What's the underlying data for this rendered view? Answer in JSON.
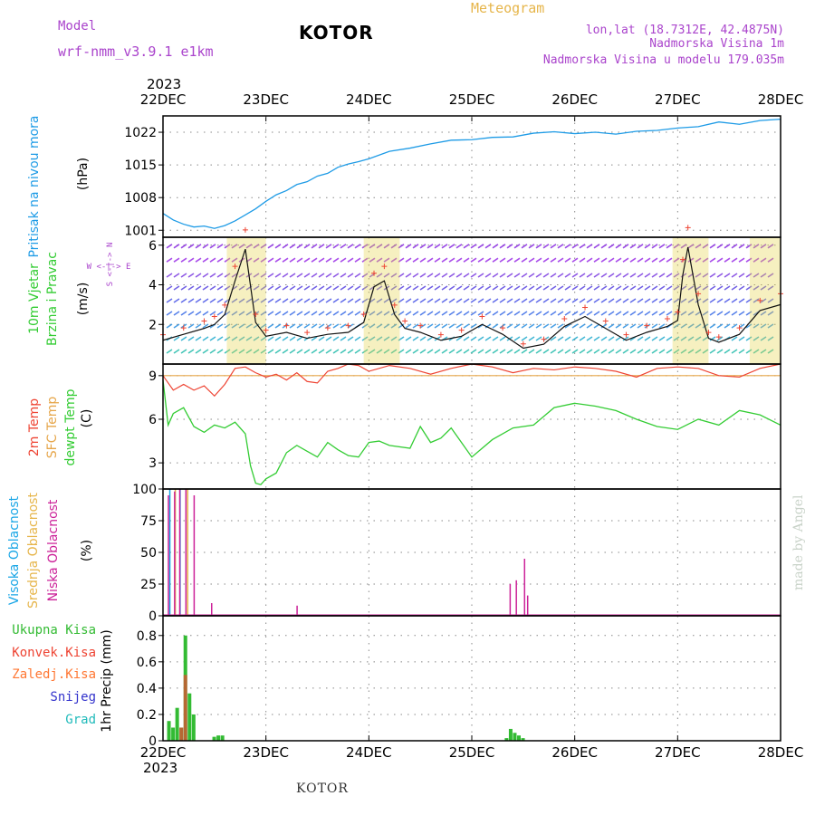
{
  "header": {
    "model_label": "Model",
    "model_name": "wrf-nmm_v3.9.1 e1km",
    "title": "KOTOR",
    "meteogram_label": "Meteogram",
    "lonlat": "lon,lat (18.7312E, 42.4875N)",
    "altitude": "Nadmorska Visina 1m",
    "model_altitude": "Nadmorska Visina u modelu 179.035m",
    "footer_title": "KOTOR",
    "credit": "made by Angel"
  },
  "colors": {
    "pressure": "#1e9be6",
    "temp2m": "#ee4433",
    "sfctemp": "#e6a64a",
    "dewpt": "#33cc33",
    "high_cloud": "#19a6e6",
    "mid_cloud": "#e6b54a",
    "low_cloud": "#cc2299",
    "total_precip": "#33bb33",
    "conv_precip": "#ee4433",
    "frz_precip": "#ff7733",
    "snow": "#3333cc",
    "hail": "#22bbbb",
    "purple_text": "#aa44cc"
  },
  "time_axis": {
    "year": "2023",
    "ticks": [
      "22DEC",
      "23DEC",
      "24DEC",
      "25DEC",
      "26DEC",
      "27DEC",
      "28DEC"
    ]
  },
  "chart_data": [
    {
      "type": "line",
      "panel": "pressure",
      "ylabel_lines": [
        "Pritisak na nivou mora"
      ],
      "unit": "(hPa)",
      "y_ticks": [
        "1022",
        "1015",
        "1008",
        "1001"
      ],
      "ylim": [
        999.5,
        1025.5
      ],
      "x_day_range": [
        0,
        6
      ],
      "series": [
        {
          "name": "Pritisak na nivou mora",
          "x": [
            0,
            0.1,
            0.2,
            0.3,
            0.4,
            0.5,
            0.6,
            0.7,
            0.8,
            0.9,
            1.0,
            1.1,
            1.2,
            1.3,
            1.4,
            1.5,
            1.6,
            1.7,
            1.8,
            1.9,
            2.0,
            2.2,
            2.4,
            2.6,
            2.8,
            3.0,
            3.2,
            3.4,
            3.6,
            3.8,
            4.0,
            4.2,
            4.4,
            4.6,
            4.8,
            5.0,
            5.2,
            5.4,
            5.6,
            5.8,
            6.0
          ],
          "values": [
            1004.6,
            1003.2,
            1002.3,
            1001.7,
            1001.9,
            1001.4,
            1002.0,
            1003.0,
            1004.3,
            1005.6,
            1007.2,
            1008.6,
            1009.5,
            1010.8,
            1011.4,
            1012.6,
            1013.2,
            1014.5,
            1015.2,
            1015.7,
            1016.3,
            1017.9,
            1018.6,
            1019.5,
            1020.3,
            1020.4,
            1020.9,
            1021.0,
            1021.8,
            1022.1,
            1021.7,
            1022.0,
            1021.6,
            1022.2,
            1022.4,
            1022.9,
            1023.2,
            1024.2,
            1023.7,
            1024.5,
            1024.8
          ]
        }
      ]
    },
    {
      "type": "line",
      "panel": "wind",
      "ylabel_lines": [
        "10m Vjetar",
        "Brzina i Pravac"
      ],
      "unit": "(m/s)",
      "compass": "W <-|-> E",
      "compass_vertical": "S <-|-> N",
      "y_ticks": [
        "6",
        "4",
        "2"
      ],
      "ylim": [
        0,
        6.4
      ],
      "x_day_range": [
        0,
        6
      ],
      "series": [
        {
          "name": "Brzina",
          "x": [
            0,
            0.2,
            0.4,
            0.5,
            0.6,
            0.7,
            0.8,
            0.9,
            1.0,
            1.2,
            1.4,
            1.6,
            1.8,
            1.95,
            2.05,
            2.15,
            2.25,
            2.35,
            2.5,
            2.7,
            2.9,
            3.1,
            3.3,
            3.5,
            3.7,
            3.9,
            4.1,
            4.3,
            4.5,
            4.7,
            4.9,
            5.0,
            5.05,
            5.1,
            5.2,
            5.3,
            5.4,
            5.6,
            5.8,
            6.0
          ],
          "values": [
            1.2,
            1.5,
            1.8,
            2.0,
            2.5,
            4.2,
            5.8,
            2.1,
            1.4,
            1.6,
            1.3,
            1.5,
            1.6,
            2.1,
            3.9,
            4.2,
            2.5,
            1.8,
            1.6,
            1.2,
            1.4,
            2.0,
            1.5,
            0.8,
            1.0,
            1.9,
            2.4,
            1.8,
            1.2,
            1.6,
            1.9,
            2.2,
            4.5,
            5.9,
            3.0,
            1.3,
            1.1,
            1.5,
            2.7,
            3.0
          ]
        }
      ]
    },
    {
      "type": "line",
      "panel": "temperature",
      "ylabel_lines": [
        "2m Temp",
        "SFC Temp",
        "dewpt Temp"
      ],
      "unit": "(C)",
      "y_ticks": [
        "9",
        "6",
        "3"
      ],
      "ylim": [
        1.2,
        9.8
      ],
      "x_day_range": [
        0,
        6
      ],
      "series": [
        {
          "name": "2m Temp",
          "x": [
            0,
            0.1,
            0.2,
            0.3,
            0.4,
            0.5,
            0.6,
            0.7,
            0.8,
            0.9,
            1.0,
            1.1,
            1.2,
            1.3,
            1.4,
            1.5,
            1.6,
            1.7,
            1.8,
            1.9,
            2.0,
            2.2,
            2.4,
            2.6,
            2.8,
            3.0,
            3.2,
            3.4,
            3.6,
            3.8,
            4.0,
            4.2,
            4.4,
            4.6,
            4.8,
            5.0,
            5.2,
            5.4,
            5.6,
            5.8,
            6.0
          ],
          "values": [
            9.0,
            8.0,
            8.4,
            8.0,
            8.3,
            7.6,
            8.4,
            9.5,
            9.6,
            9.2,
            8.9,
            9.1,
            8.7,
            9.2,
            8.6,
            8.5,
            9.3,
            9.5,
            9.8,
            9.7,
            9.3,
            9.7,
            9.5,
            9.1,
            9.5,
            9.8,
            9.6,
            9.2,
            9.5,
            9.4,
            9.6,
            9.5,
            9.3,
            8.9,
            9.5,
            9.6,
            9.5,
            9.0,
            8.9,
            9.5,
            9.8
          ]
        },
        {
          "name": "SFC Temp",
          "x": [
            0,
            6
          ],
          "values": [
            9.0,
            9.0
          ]
        },
        {
          "name": "dewpt Temp",
          "x": [
            0,
            0.05,
            0.1,
            0.2,
            0.3,
            0.4,
            0.5,
            0.6,
            0.7,
            0.8,
            0.85,
            0.9,
            0.95,
            1.0,
            1.1,
            1.2,
            1.3,
            1.4,
            1.5,
            1.6,
            1.7,
            1.8,
            1.9,
            2.0,
            2.1,
            2.2,
            2.4,
            2.5,
            2.6,
            2.7,
            2.8,
            3.0,
            3.2,
            3.4,
            3.6,
            3.8,
            4.0,
            4.2,
            4.4,
            4.6,
            4.8,
            5.0,
            5.2,
            5.4,
            5.6,
            5.8,
            6.0
          ],
          "values": [
            8.7,
            5.6,
            6.4,
            6.8,
            5.5,
            5.1,
            5.6,
            5.4,
            5.8,
            5.0,
            2.8,
            1.6,
            1.5,
            1.9,
            2.3,
            3.7,
            4.2,
            3.8,
            3.4,
            4.4,
            3.9,
            3.5,
            3.4,
            4.4,
            4.5,
            4.2,
            4.0,
            5.5,
            4.4,
            4.7,
            5.4,
            3.4,
            4.6,
            5.4,
            5.6,
            6.8,
            7.1,
            6.9,
            6.6,
            6.0,
            5.5,
            5.3,
            6.0,
            5.6,
            6.6,
            6.3,
            5.6
          ]
        }
      ]
    },
    {
      "type": "bar",
      "panel": "clouds",
      "ylabel_lines": [
        "Visoka Oblacnost",
        "Srednja Oblacnost",
        "Niska Oblacnost"
      ],
      "unit": "(%)",
      "y_ticks": [
        "100",
        "75",
        "50",
        "25",
        "0"
      ],
      "ylim": [
        0,
        100
      ],
      "x_day_range": [
        0,
        6
      ],
      "series": [
        {
          "name": "Visoka Oblacnost",
          "x": [
            0.04,
            0.14
          ],
          "values": [
            100,
            100
          ]
        },
        {
          "name": "Srednja Oblacnost",
          "x": [
            0.08,
            0.2
          ],
          "values": [
            100,
            100
          ]
        },
        {
          "name": "Niska Oblacnost",
          "x": [
            0.0,
            0.06,
            0.11,
            0.17,
            0.25,
            0.42,
            1.25,
            3.32,
            3.38,
            3.46,
            3.49
          ],
          "values": [
            95,
            98,
            100,
            100,
            95,
            10,
            8,
            25,
            28,
            45,
            16
          ]
        }
      ]
    },
    {
      "type": "bar",
      "panel": "precip",
      "ylabel_lines": [
        "1hr Precip (mm)"
      ],
      "legend": [
        "Ukupna Kisa",
        "Konvek.Kisa",
        "Zaledj.Kisa",
        "Snijeg",
        "Grad"
      ],
      "y_ticks": [
        "0.8",
        "0.6",
        "0.4",
        "0.2",
        "0"
      ],
      "ylim": [
        0,
        0.95
      ],
      "x_day_range": [
        0,
        6
      ],
      "series": [
        {
          "name": "Ukupna Kisa",
          "x": [
            0.04,
            0.08,
            0.12,
            0.16,
            0.2,
            0.24,
            0.28,
            0.48,
            0.52,
            0.56,
            3.32,
            3.36,
            3.4,
            3.44,
            3.48
          ],
          "values": [
            0.15,
            0.1,
            0.25,
            0.1,
            0.8,
            0.36,
            0.2,
            0.03,
            0.04,
            0.04,
            0.02,
            0.09,
            0.06,
            0.04,
            0.02
          ]
        },
        {
          "name": "Konvek.Kisa",
          "x": [
            0.16,
            0.2
          ],
          "values": [
            0.1,
            0.5
          ]
        }
      ]
    }
  ]
}
